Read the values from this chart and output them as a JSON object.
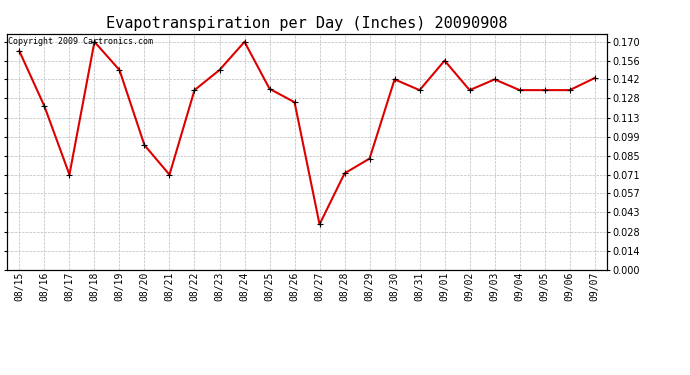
{
  "title": "Evapotranspiration per Day (Inches) 20090908",
  "copyright_text": "Copyright 2009 Cartronics.com",
  "x_labels": [
    "08/15",
    "08/16",
    "08/17",
    "08/18",
    "08/19",
    "08/20",
    "08/21",
    "08/22",
    "08/23",
    "08/24",
    "08/25",
    "08/26",
    "08/27",
    "08/28",
    "08/29",
    "08/30",
    "08/31",
    "09/01",
    "09/02",
    "09/03",
    "09/04",
    "09/05",
    "09/06",
    "09/07"
  ],
  "y_values": [
    0.163,
    0.122,
    0.071,
    0.17,
    0.149,
    0.093,
    0.071,
    0.134,
    0.149,
    0.17,
    0.135,
    0.125,
    0.034,
    0.072,
    0.083,
    0.142,
    0.134,
    0.156,
    0.134,
    0.142,
    0.134,
    0.134,
    0.134,
    0.143
  ],
  "line_color": "#dd0000",
  "marker": "+",
  "marker_size": 5,
  "ylim_min": 0.0,
  "ylim_max": 0.176,
  "yticks": [
    0.0,
    0.014,
    0.028,
    0.043,
    0.057,
    0.071,
    0.085,
    0.099,
    0.113,
    0.128,
    0.142,
    0.156,
    0.17
  ],
  "background_color": "#ffffff",
  "grid_color": "#bbbbbb",
  "title_fontsize": 11,
  "tick_fontsize": 7,
  "copyright_fontsize": 6
}
